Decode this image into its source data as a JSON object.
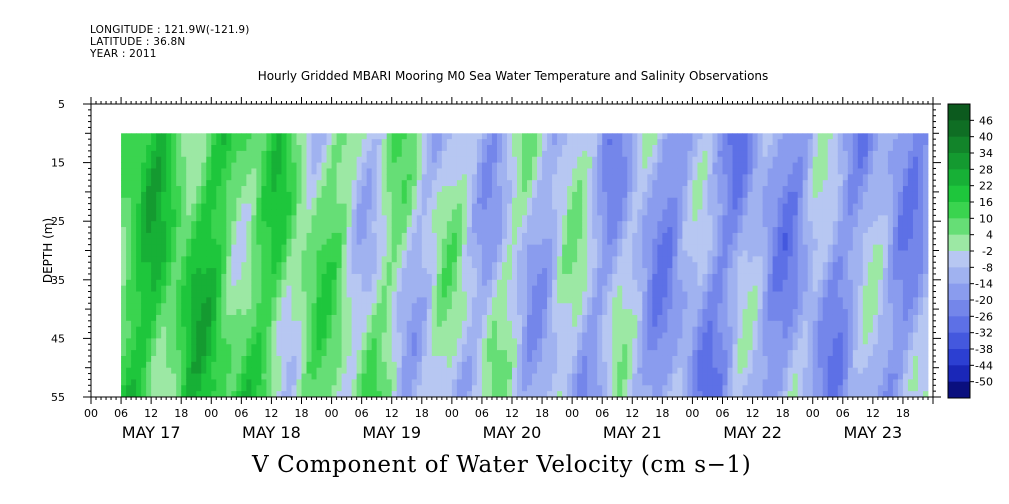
{
  "header": {
    "longitude": "LONGITUDE : 121.9W(-121.9)",
    "latitude": "LATITUDE : 36.8N",
    "year": "YEAR : 2011"
  },
  "chart_data": {
    "type": "heatmap",
    "title": "Hourly Gridded MBARI Mooring M0 Sea Water Temperature and Salinity Observations",
    "xlabel": "",
    "ylabel": "DEPTH (m)",
    "variable_label": "V Component of Water Velocity (cm s−1)",
    "x_range": [
      "2011-05-17 00:00",
      "2011-05-24 00:00"
    ],
    "x_hour_ticks": [
      "00",
      "06",
      "12",
      "18",
      "00",
      "06",
      "12",
      "18",
      "00",
      "06",
      "12",
      "18",
      "00",
      "06",
      "12",
      "18",
      "00",
      "06",
      "12",
      "18",
      "00",
      "06",
      "12",
      "18",
      "00",
      "06",
      "12",
      "18"
    ],
    "x_day_labels": [
      "MAY 17",
      "MAY 18",
      "MAY 19",
      "MAY 20",
      "MAY 21",
      "MAY 22",
      "MAY 23"
    ],
    "ylim": [
      55,
      5
    ],
    "y_ticks": [
      5,
      15,
      25,
      35,
      45,
      55
    ],
    "data_depth_range": [
      10,
      55
    ],
    "data_time_range": [
      "2011-05-17 06:00",
      "2011-05-23 23:00"
    ],
    "colorbar": {
      "levels": [
        48,
        46,
        40,
        34,
        28,
        22,
        16,
        10,
        4,
        -2,
        -8,
        -14,
        -20,
        -26,
        -32,
        -38,
        -44,
        -50
      ],
      "tick_labels": [
        "46",
        "40",
        "34",
        "28",
        "22",
        "16",
        "10",
        "4",
        "-2",
        "-8",
        "-14",
        "-20",
        "-26",
        "-32",
        "-38",
        "-44",
        "-50"
      ],
      "colors_top_to_bottom": [
        "#0c5a1e",
        "#0f6e24",
        "#12842a",
        "#149a30",
        "#17b036",
        "#1ec63c",
        "#3ad44f",
        "#66de76",
        "#9ce8a4",
        "#b7c7f2",
        "#a0b2f0",
        "#8a9cee",
        "#7486ea",
        "#5d70e6",
        "#4458de",
        "#2c3fd2",
        "#1a27b8",
        "#0a0f7e"
      ]
    },
    "approx_mean_velocity_by_day": [
      {
        "day": "MAY 17",
        "value": 14
      },
      {
        "day": "MAY 18",
        "value": 14
      },
      {
        "day": "MAY 19",
        "value": 2
      },
      {
        "day": "MAY 20",
        "value": -6
      },
      {
        "day": "MAY 21",
        "value": -8
      },
      {
        "day": "MAY 22",
        "value": -16
      },
      {
        "day": "MAY 23",
        "value": -14
      }
    ]
  }
}
